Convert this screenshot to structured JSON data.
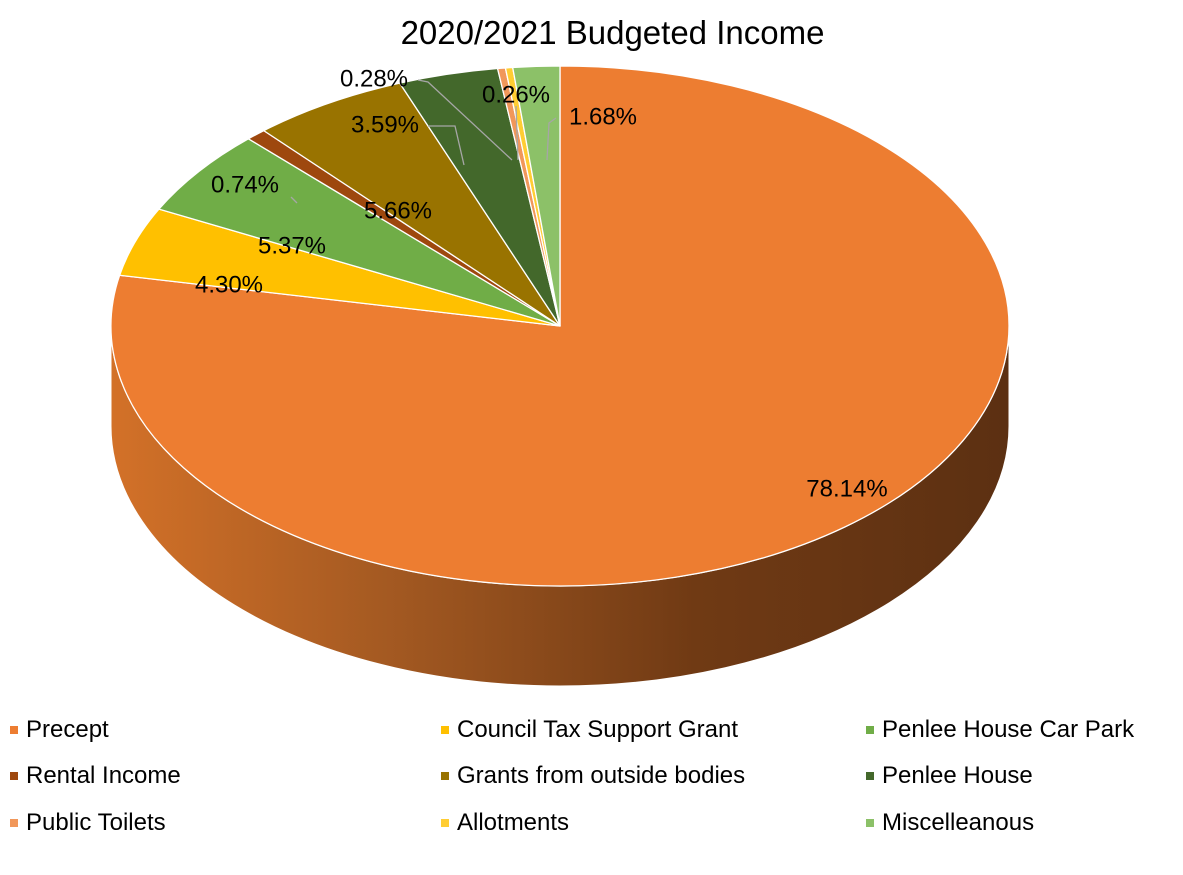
{
  "chart_data": {
    "type": "pie",
    "title": "2020/2021 Budgeted Income",
    "series": [
      {
        "name": "Precept",
        "value": 78.14,
        "label": "78.14%",
        "color": "#ED7D31"
      },
      {
        "name": "Council Tax Support Grant",
        "value": 4.3,
        "label": "4.30%",
        "color": "#FFC000"
      },
      {
        "name": "Penlee House Car Park",
        "value": 5.37,
        "label": "5.37%",
        "color": "#70AD47"
      },
      {
        "name": "Rental Income",
        "value": 0.74,
        "label": "0.74%",
        "color": "#9E480E"
      },
      {
        "name": "Grants from outside bodies",
        "value": 5.66,
        "label": "5.66%",
        "color": "#997300"
      },
      {
        "name": "Penlee House",
        "value": 3.59,
        "label": "3.59%",
        "color": "#43682B"
      },
      {
        "name": "Public Toilets",
        "value": 0.28,
        "label": "0.28%",
        "color": "#F1975A"
      },
      {
        "name": "Allotments",
        "value": 0.26,
        "label": "0.26%",
        "color": "#FFCD33"
      },
      {
        "name": "Miscelleanous",
        "value": 1.68,
        "label": "1.68%",
        "color": "#8CC168"
      }
    ],
    "legend_position": "bottom",
    "style": "3d"
  }
}
